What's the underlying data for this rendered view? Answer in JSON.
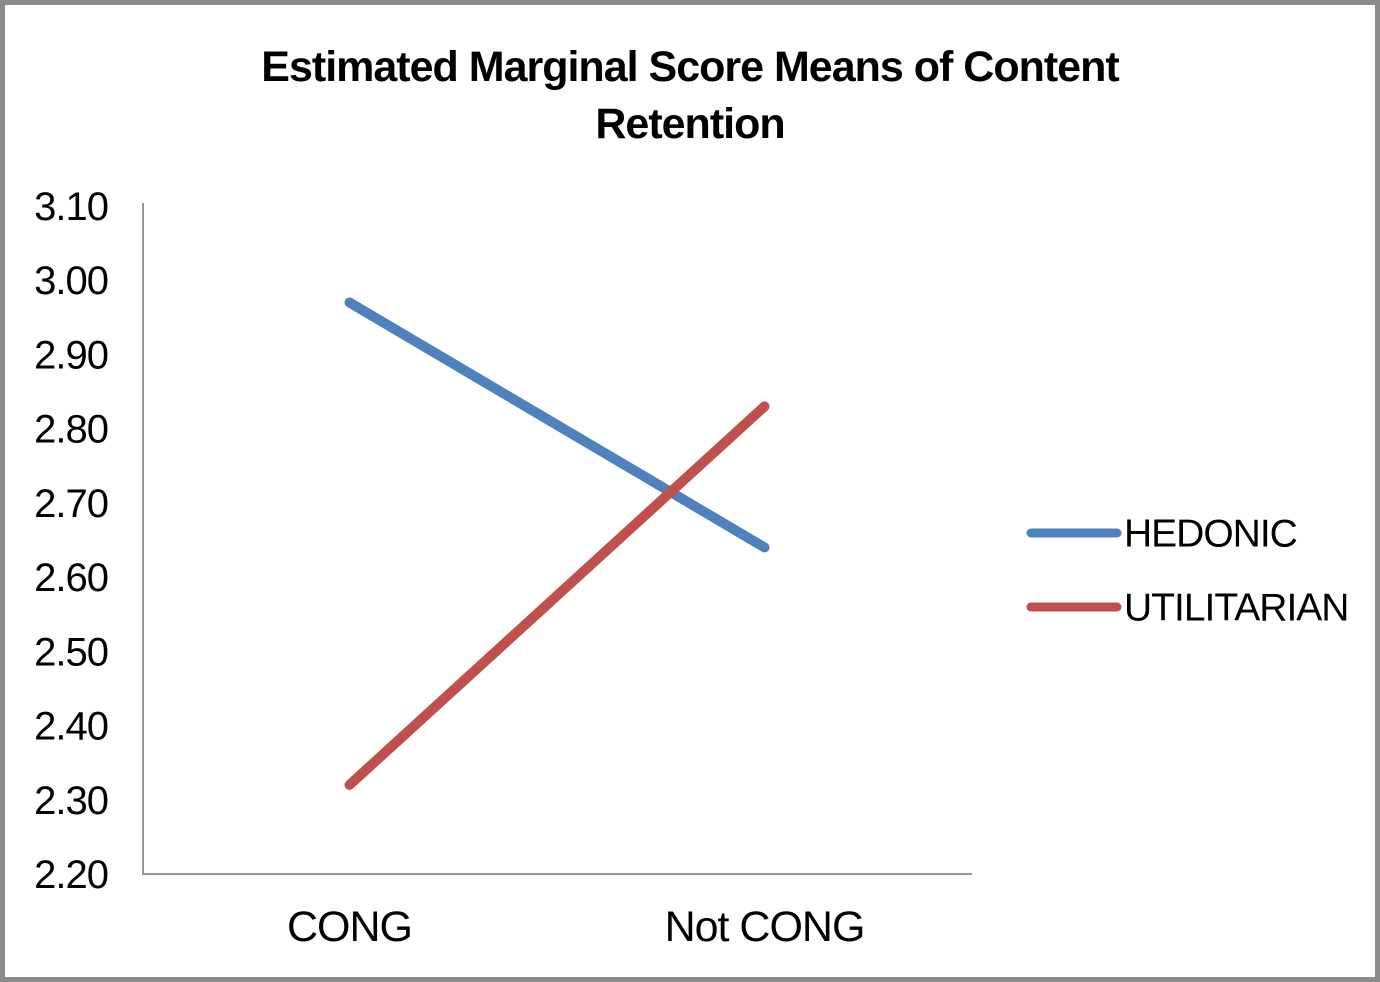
{
  "frame": {
    "border_color": "#8b8b8b",
    "background_color": "#ffffff"
  },
  "chart_data": {
    "type": "line",
    "title": "Estimated Marginal Score Means of Content Retention",
    "categories": [
      "CONG",
      "Not CONG"
    ],
    "series": [
      {
        "name": "HEDONIC",
        "color": "#4F81BD",
        "values": [
          2.97,
          2.64
        ]
      },
      {
        "name": "UTILITARIAN",
        "color": "#C0504D",
        "values": [
          2.32,
          2.83
        ]
      }
    ],
    "ylim": [
      2.2,
      3.1
    ],
    "y_tick_step": 0.1,
    "y_tick_labels": [
      "2.20",
      "2.30",
      "2.40",
      "2.50",
      "2.60",
      "2.70",
      "2.80",
      "2.90",
      "3.00",
      "3.10"
    ],
    "xlabel": "",
    "ylabel": "",
    "grid": false,
    "legend_position": "right",
    "axis_color": "#969696",
    "text_color": "#000000"
  }
}
